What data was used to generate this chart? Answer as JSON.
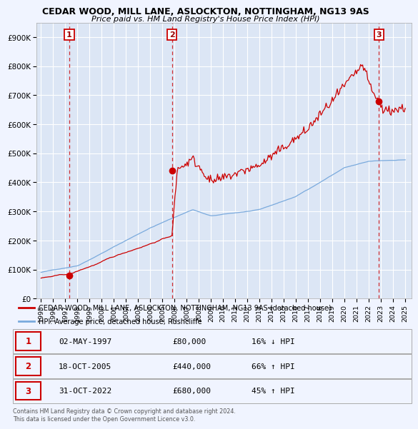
{
  "title": "CEDAR WOOD, MILL LANE, ASLOCKTON, NOTTINGHAM, NG13 9AS",
  "subtitle": "Price paid vs. HM Land Registry's House Price Index (HPI)",
  "background_color": "#f0f4ff",
  "plot_bg_color": "#dce6f5",
  "sale_dates_num": [
    1997.33,
    2005.79,
    2022.83
  ],
  "sale_prices": [
    80000,
    440000,
    680000
  ],
  "sale_labels": [
    "1",
    "2",
    "3"
  ],
  "ylim": [
    0,
    950000
  ],
  "yticks": [
    0,
    100000,
    200000,
    300000,
    400000,
    500000,
    600000,
    700000,
    800000,
    900000
  ],
  "ytick_labels": [
    "£0",
    "£100K",
    "£200K",
    "£300K",
    "£400K",
    "£500K",
    "£600K",
    "£700K",
    "£800K",
    "£900K"
  ],
  "sale_color": "#cc0000",
  "hpi_color": "#7aaadd",
  "dashed_line_color": "#cc0000",
  "grid_color": "#ffffff",
  "legend_sale_label": "CEDAR WOOD, MILL LANE, ASLOCKTON, NOTTINGHAM, NG13 9AS (detached house)",
  "legend_hpi_label": "HPI: Average price, detached house, Rushcliffe",
  "table_rows": [
    {
      "num": "1",
      "date": "02-MAY-1997",
      "price": "£80,000",
      "hpi": "16% ↓ HPI"
    },
    {
      "num": "2",
      "date": "18-OCT-2005",
      "price": "£440,000",
      "hpi": "66% ↑ HPI"
    },
    {
      "num": "3",
      "date": "31-OCT-2022",
      "price": "£680,000",
      "hpi": "45% ↑ HPI"
    }
  ],
  "footer": "Contains HM Land Registry data © Crown copyright and database right 2024.\nThis data is licensed under the Open Government Licence v3.0.",
  "xtick_years": [
    1995,
    1996,
    1997,
    1998,
    1999,
    2000,
    2001,
    2002,
    2003,
    2004,
    2005,
    2006,
    2007,
    2008,
    2009,
    2010,
    2011,
    2012,
    2013,
    2014,
    2015,
    2016,
    2017,
    2018,
    2019,
    2020,
    2021,
    2022,
    2023,
    2024,
    2025
  ]
}
